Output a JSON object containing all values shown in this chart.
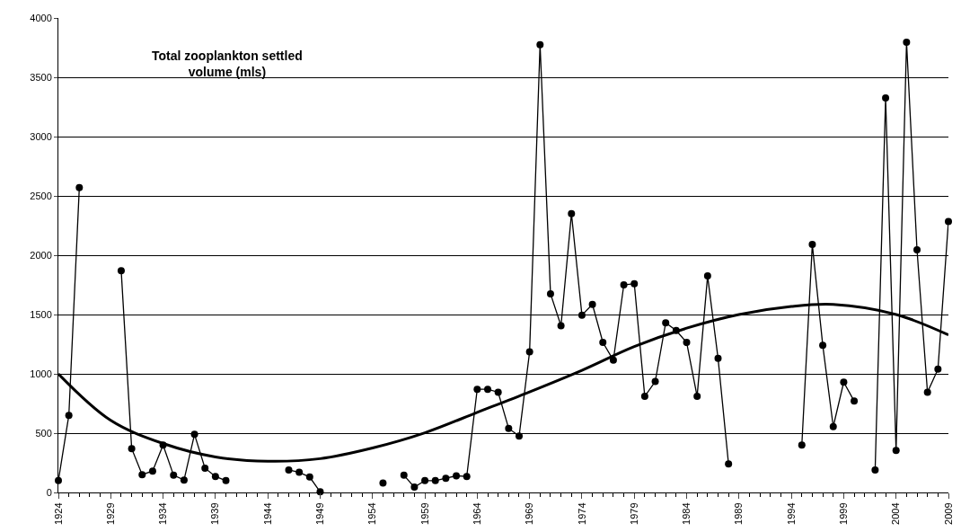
{
  "chart_data": {
    "type": "line",
    "title": "Total zooplankton settled\nvolume (mls)",
    "x": [
      1924,
      1925,
      1926,
      1927,
      1928,
      1929,
      1930,
      1931,
      1932,
      1933,
      1934,
      1935,
      1936,
      1937,
      1938,
      1939,
      1940,
      1941,
      1942,
      1943,
      1944,
      1945,
      1946,
      1947,
      1948,
      1949,
      1950,
      1951,
      1952,
      1953,
      1954,
      1955,
      1956,
      1957,
      1958,
      1959,
      1960,
      1961,
      1962,
      1963,
      1964,
      1965,
      1966,
      1967,
      1968,
      1969,
      1970,
      1971,
      1972,
      1973,
      1974,
      1975,
      1976,
      1977,
      1978,
      1979,
      1980,
      1981,
      1982,
      1983,
      1984,
      1985,
      1986,
      1987,
      1988,
      1989,
      1990,
      1991,
      1992,
      1993,
      1994,
      1995,
      1996,
      1997,
      1998,
      1999,
      2000,
      2001,
      2002,
      2003,
      2004,
      2005,
      2006,
      2007,
      2008,
      2009
    ],
    "series": [
      {
        "color": "#000000",
        "marker": "circle",
        "values": [
          100,
          650,
          2570,
          null,
          null,
          null,
          1870,
          370,
          150,
          180,
          400,
          145,
          105,
          490,
          205,
          135,
          100,
          null,
          null,
          null,
          null,
          null,
          190,
          170,
          130,
          5,
          null,
          null,
          null,
          null,
          null,
          80,
          null,
          145,
          45,
          100,
          100,
          120,
          140,
          135,
          870,
          870,
          845,
          540,
          475,
          1185,
          3775,
          1675,
          1405,
          2350,
          1495,
          1585,
          1265,
          1115,
          1750,
          1760,
          810,
          935,
          1430,
          1365,
          1265,
          810,
          1825,
          1130,
          240,
          null,
          null,
          null,
          null,
          null,
          null,
          400,
          2090,
          1240,
          555,
          930,
          770,
          null,
          190,
          3325,
          355,
          3795,
          2045,
          845,
          1040,
          2285
        ]
      },
      {
        "color": "#000000",
        "marker": "none",
        "x": [
          1924,
          1929,
          1934,
          1939,
          1944,
          1949,
          1954,
          1959,
          1964,
          1969,
          1974,
          1979,
          1984,
          1989,
          1994,
          1998,
          2004,
          2009
        ],
        "values": [
          1000,
          608,
          413,
          300,
          263,
          285,
          375,
          503,
          675,
          848,
          1030,
          1230,
          1385,
          1500,
          1568,
          1585,
          1500,
          1328
        ]
      }
    ],
    "xlim": [
      1924,
      2009
    ],
    "xticks": [
      1924,
      1929,
      1934,
      1939,
      1944,
      1949,
      1954,
      1959,
      1964,
      1969,
      1974,
      1979,
      1984,
      1989,
      1994,
      1999,
      2004,
      2009
    ],
    "ylim": [
      0,
      4000
    ],
    "yticks": [
      0,
      500,
      1000,
      1500,
      2000,
      2500,
      3000,
      3500,
      4000
    ],
    "grid": "y",
    "line_style": "solid"
  }
}
